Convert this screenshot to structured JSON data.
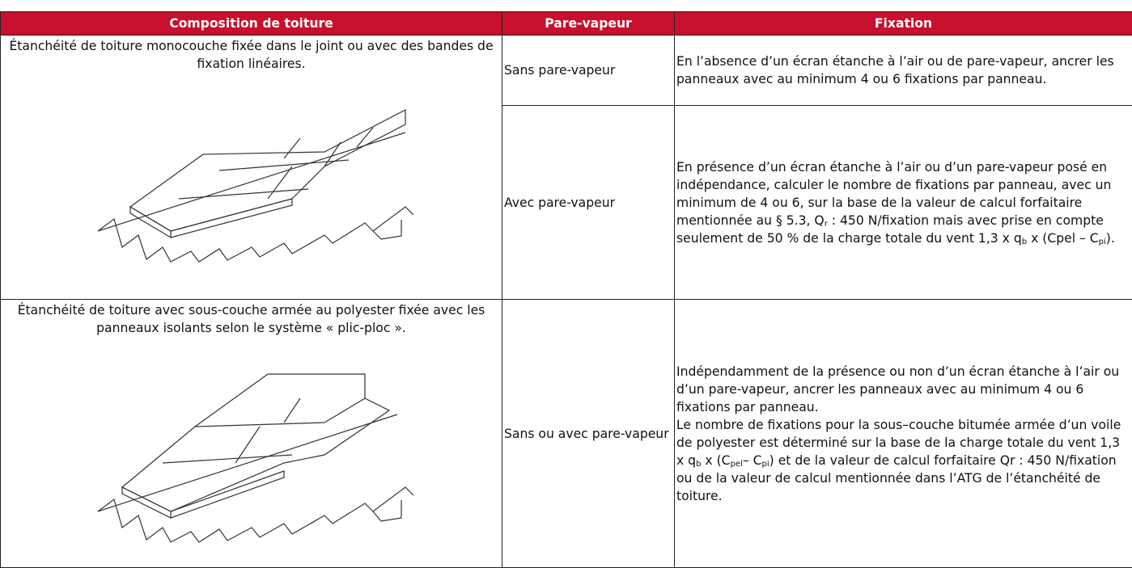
{
  "table": {
    "header": [
      "Composition de toiture",
      "Pare-vapeur",
      "Fixation"
    ],
    "rows": [
      {
        "composition": "Étanchéité de toiture monocouche fixée dans le joint ou avec des bandes de fixation linéaires.",
        "entries": [
          {
            "pare_vapeur": "Sans pare-vapeur",
            "fixation": [
              [
                "En l’absence d’un écran étanche à l’air ou de pare-vapeur, ancrer les panneaux avec au minimum 4 ou 6 fixations par panneau."
              ]
            ]
          },
          {
            "pare_vapeur": "Avec pare-vapeur",
            "fixation": [
              [
                "En présence d’un écran étanche à l’air ou d’un pare-vapeur posé en indépendance, calculer le nombre de fixations par panneau, avec un minimum de 4 ou 6, sur la base de la valeur de calcul forfaitaire mentionnée au § 5.3, Q",
                "r",
                " : 450 N/fixation mais avec prise en compte seulement de 50 % de la charge totale du vent 1,3 x q",
                "b",
                " x (Cpel – C",
                "pi",
                ")."
              ]
            ]
          }
        ]
      },
      {
        "composition": "Étanchéité de toiture avec sous-couche armée au polyester fixée avec les panneaux isolants selon le système « plic-ploc ».",
        "entries": [
          {
            "pare_vapeur": "Sans ou avec pare-vapeur",
            "fixation": [
              [
                "Indépendamment de la présence ou non d’un écran étanche à l’air ou d’un pare-vapeur, ancrer les panneaux avec au minimum 4 ou 6 fixations par panneau."
              ],
              [
                "Le nombre de fixations pour la sous–couche bitumée armée d’un voile de polyester est déterminé sur la base de la charge totale du vent 1,3 x q",
                "b",
                " x (C",
                "pel",
                "– C",
                "pi",
                ") et de la valeur de calcul forfaitaire Qr : 450 N/fixation ou de la valeur de calcul mentionnée dans l’ATG de l’étanchéité de toiture."
              ]
            ]
          }
        ]
      }
    ]
  }
}
